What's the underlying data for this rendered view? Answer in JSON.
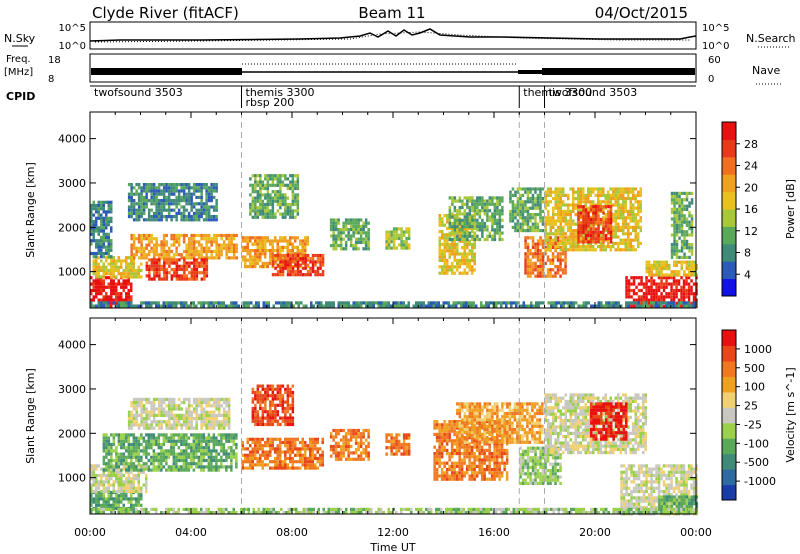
{
  "header": {
    "station": "Clyde River (fitACF)",
    "beam": "Beam 11",
    "date": "04/Oct/2015"
  },
  "noise_panel": {
    "left_label": "N.Sky",
    "right_label": "N.Search",
    "left_ticks": [
      "10^5",
      "10^0"
    ],
    "right_ticks": [
      "10^5",
      "10^0"
    ]
  },
  "freq_panel": {
    "left_label_1": "Freq.",
    "left_label_2": "[MHz]",
    "left_ticks": [
      "18",
      "8"
    ],
    "right_ticks": [
      "60",
      "0"
    ],
    "right_label": "Nave"
  },
  "cpid_panel": {
    "label": "CPID",
    "segments": [
      {
        "start_hour": 0.0,
        "lines": [
          "twofsound 3503"
        ]
      },
      {
        "start_hour": 6.0,
        "lines": [
          "themis 3300",
          "rbsp 200"
        ]
      },
      {
        "start_hour": 17.0,
        "lines": [
          "themis 3300"
        ]
      },
      {
        "start_hour": 18.0,
        "lines": [
          "twofsound 3503"
        ]
      }
    ]
  },
  "time_axis": {
    "label": "Time UT",
    "min_hour": 0,
    "max_hour": 24,
    "tick_labels": [
      "00:00",
      "04:00",
      "08:00",
      "12:00",
      "16:00",
      "20:00",
      "00:00"
    ],
    "dashed_hours": [
      6.0,
      17.0,
      18.0
    ]
  },
  "chart_data": [
    {
      "type": "heatmap",
      "ylabel": "Slant Range [km]",
      "ylim": [
        180,
        4600
      ],
      "y_ticks": [
        1000,
        2000,
        3000,
        4000
      ],
      "colorbar": {
        "label": "Power [dB]",
        "tick_labels": [
          "4",
          "8",
          "12",
          "16",
          "20",
          "24",
          "28"
        ],
        "colors": [
          "#1010e8",
          "#2b5ab8",
          "#3f8a78",
          "#5aa85a",
          "#a8c83a",
          "#e8c020",
          "#f0a020",
          "#f07020",
          "#e83a18",
          "#e81010"
        ]
      },
      "regions": [
        {
          "t0": 0.0,
          "t1": 1.6,
          "r0": 200,
          "r1": 900,
          "level": 9
        },
        {
          "t0": 0.1,
          "t1": 2.0,
          "r0": 900,
          "r1": 1350,
          "level": 5
        },
        {
          "t0": 0.0,
          "t1": 0.8,
          "r0": 1350,
          "r1": 2600,
          "level": 2
        },
        {
          "t0": 1.6,
          "t1": 5.8,
          "r0": 1300,
          "r1": 1850,
          "level": 6
        },
        {
          "t0": 2.2,
          "t1": 4.6,
          "r0": 850,
          "r1": 1300,
          "level": 8
        },
        {
          "t0": 1.5,
          "t1": 5.0,
          "r0": 2200,
          "r1": 3000,
          "level": 2
        },
        {
          "t0": 6.0,
          "t1": 8.6,
          "r0": 1100,
          "r1": 1800,
          "level": 6
        },
        {
          "t0": 7.2,
          "t1": 9.2,
          "r0": 900,
          "r1": 1400,
          "level": 8
        },
        {
          "t0": 6.3,
          "t1": 8.2,
          "r0": 2200,
          "r1": 3200,
          "level": 3
        },
        {
          "t0": 9.5,
          "t1": 11.0,
          "r0": 1500,
          "r1": 2200,
          "level": 3
        },
        {
          "t0": 11.7,
          "t1": 12.6,
          "r0": 1500,
          "r1": 2000,
          "level": 4
        },
        {
          "t0": 13.8,
          "t1": 15.2,
          "r0": 1000,
          "r1": 2300,
          "level": 5
        },
        {
          "t0": 14.2,
          "t1": 16.3,
          "r0": 1700,
          "r1": 2700,
          "level": 3
        },
        {
          "t0": 16.6,
          "t1": 17.9,
          "r0": 1900,
          "r1": 2900,
          "level": 3
        },
        {
          "t0": 17.2,
          "t1": 18.8,
          "r0": 900,
          "r1": 1800,
          "level": 7
        },
        {
          "t0": 18.0,
          "t1": 21.8,
          "r0": 1500,
          "r1": 2900,
          "level": 5
        },
        {
          "t0": 19.3,
          "t1": 20.6,
          "r0": 1700,
          "r1": 2500,
          "level": 8
        },
        {
          "t0": 21.2,
          "t1": 24.0,
          "r0": 200,
          "r1": 900,
          "level": 9
        },
        {
          "t0": 22.0,
          "t1": 24.0,
          "r0": 900,
          "r1": 1250,
          "level": 5
        },
        {
          "t0": 23.0,
          "t1": 23.8,
          "r0": 1300,
          "r1": 2800,
          "level": 3
        },
        {
          "t0": 0.0,
          "t1": 24.0,
          "r0": 200,
          "r1": 330,
          "level": 2
        }
      ]
    },
    {
      "type": "heatmap",
      "ylabel": "Slant Range [km]",
      "ylim": [
        180,
        4600
      ],
      "y_ticks": [
        1000,
        2000,
        3000,
        4000
      ],
      "colorbar": {
        "label": "Velocity [m s^-1]",
        "tick_labels": [
          "1000",
          "500",
          "100",
          "25",
          "-25",
          "-100",
          "-500",
          "-1000"
        ],
        "colors": [
          "#1a3ca8",
          "#2f6aa0",
          "#3f8a78",
          "#5aa85a",
          "#9ad04a",
          "#c8c8c0",
          "#f0d070",
          "#f0a020",
          "#f07820",
          "#e84818",
          "#e81010"
        ]
      },
      "regions": [
        {
          "t0": 0.0,
          "t1": 2.0,
          "r0": 200,
          "r1": 700,
          "level": 3
        },
        {
          "t0": 0.0,
          "t1": 2.2,
          "r0": 700,
          "r1": 1300,
          "level": 5
        },
        {
          "t0": 0.5,
          "t1": 5.8,
          "r0": 1200,
          "r1": 2000,
          "level": 3
        },
        {
          "t0": 1.5,
          "t1": 5.5,
          "r0": 2100,
          "r1": 2800,
          "level": 5
        },
        {
          "t0": 6.0,
          "t1": 9.2,
          "r0": 1200,
          "r1": 1900,
          "level": 8
        },
        {
          "t0": 6.4,
          "t1": 8.0,
          "r0": 2200,
          "r1": 3100,
          "level": 9
        },
        {
          "t0": 9.5,
          "t1": 11.0,
          "r0": 1400,
          "r1": 2100,
          "level": 8
        },
        {
          "t0": 11.7,
          "t1": 12.6,
          "r0": 1500,
          "r1": 2000,
          "level": 8
        },
        {
          "t0": 13.6,
          "t1": 16.5,
          "r0": 1000,
          "r1": 2300,
          "level": 8
        },
        {
          "t0": 14.5,
          "t1": 17.9,
          "r0": 1800,
          "r1": 2700,
          "level": 7
        },
        {
          "t0": 17.0,
          "t1": 18.6,
          "r0": 900,
          "r1": 1700,
          "level": 4
        },
        {
          "t0": 18.0,
          "t1": 22.0,
          "r0": 1600,
          "r1": 2900,
          "level": 5
        },
        {
          "t0": 19.8,
          "t1": 21.2,
          "r0": 1900,
          "r1": 2700,
          "level": 10
        },
        {
          "t0": 21.0,
          "t1": 24.0,
          "r0": 200,
          "r1": 1300,
          "level": 5
        },
        {
          "t0": 22.5,
          "t1": 24.0,
          "r0": 200,
          "r1": 600,
          "level": 3
        },
        {
          "t0": 0.0,
          "t1": 24.0,
          "r0": 200,
          "r1": 320,
          "level": 4
        }
      ]
    }
  ]
}
